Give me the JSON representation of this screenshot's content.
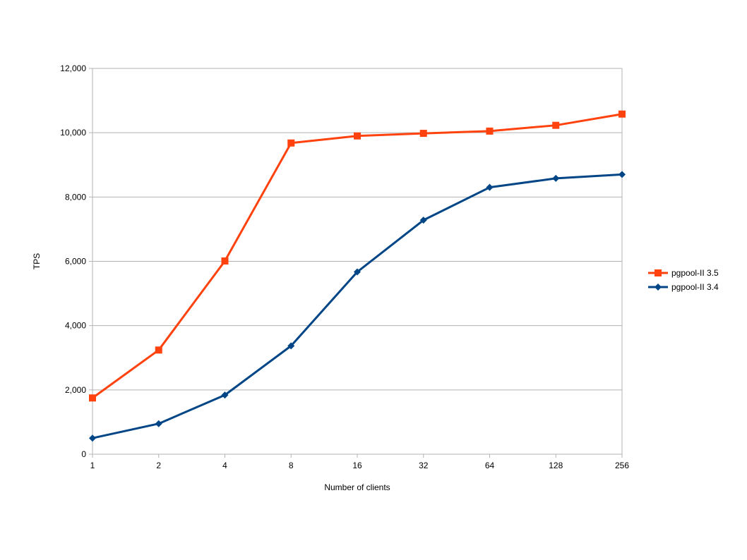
{
  "chart_data": {
    "type": "line",
    "title": "",
    "xlabel": "Number of clients",
    "ylabel": "TPS",
    "categories": [
      "1",
      "2",
      "4",
      "8",
      "16",
      "32",
      "64",
      "128",
      "256"
    ],
    "ylim": [
      0,
      12000
    ],
    "yticks": [
      0,
      2000,
      4000,
      6000,
      8000,
      10000,
      12000
    ],
    "ytick_labels": [
      "0",
      "2,000",
      "4,000",
      "6,000",
      "8,000",
      "10,000",
      "12,000"
    ],
    "grid": true,
    "legend_position": "right",
    "series": [
      {
        "name": "pgpool-II 3.5",
        "color": "#ff420e",
        "marker": "square",
        "values": [
          1750,
          3240,
          6010,
          9680,
          9900,
          9980,
          10050,
          10230,
          10580
        ]
      },
      {
        "name": "pgpool-II 3.4",
        "color": "#004586",
        "marker": "diamond",
        "values": [
          500,
          950,
          1840,
          3370,
          5670,
          7280,
          8300,
          8580,
          8700
        ]
      }
    ]
  }
}
